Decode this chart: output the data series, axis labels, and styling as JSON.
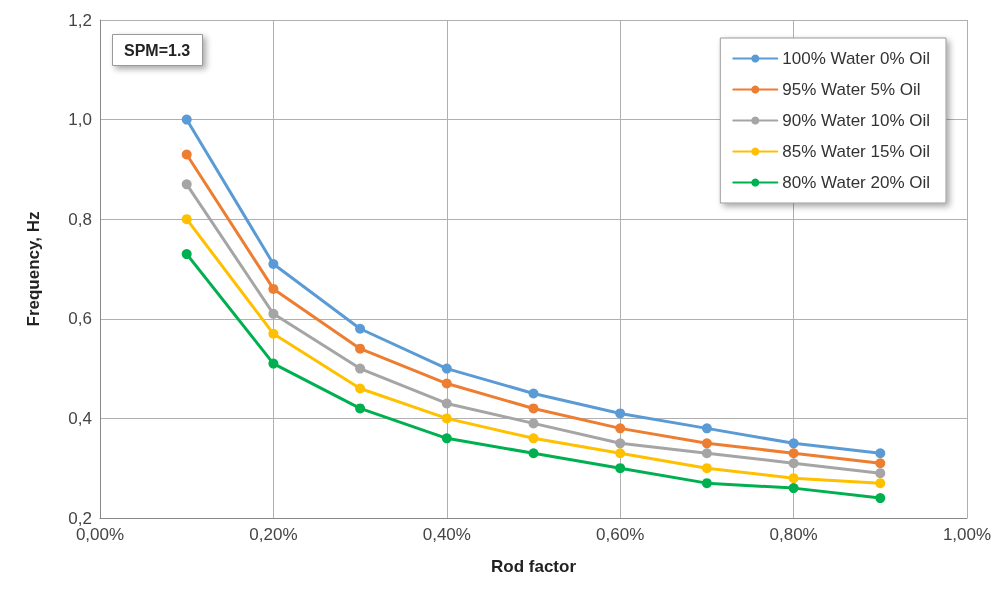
{
  "chart_data": {
    "type": "line",
    "xlabel": "Rod factor",
    "ylabel": "Frequency, Hz",
    "annotations": [
      "SPM=1.3"
    ],
    "x": [
      0.1,
      0.2,
      0.3,
      0.4,
      0.5,
      0.6,
      0.7,
      0.8,
      0.9
    ],
    "series": [
      {
        "name": "100% Water 0% Oil",
        "color": "#5b9bd5",
        "values": [
          1.0,
          0.71,
          0.58,
          0.5,
          0.45,
          0.41,
          0.38,
          0.35,
          0.33
        ]
      },
      {
        "name": "95% Water 5% Oil",
        "color": "#ed7d31",
        "values": [
          0.93,
          0.66,
          0.54,
          0.47,
          0.42,
          0.38,
          0.35,
          0.33,
          0.31
        ]
      },
      {
        "name": "90% Water 10% Oil",
        "color": "#a5a5a5",
        "values": [
          0.87,
          0.61,
          0.5,
          0.43,
          0.39,
          0.35,
          0.33,
          0.31,
          0.29
        ]
      },
      {
        "name": "85% Water 15% Oil",
        "color": "#ffc000",
        "values": [
          0.8,
          0.57,
          0.46,
          0.4,
          0.36,
          0.33,
          0.3,
          0.28,
          0.27
        ]
      },
      {
        "name": "80% Water 20% Oil",
        "color": "#00b050",
        "values": [
          0.73,
          0.51,
          0.42,
          0.36,
          0.33,
          0.3,
          0.27,
          0.26,
          0.24
        ]
      }
    ],
    "xlim": [
      0,
      1
    ],
    "xticks": [
      {
        "value": 0,
        "label": "0,00%"
      },
      {
        "value": 0.2,
        "label": "0,20%"
      },
      {
        "value": 0.4,
        "label": "0,40%"
      },
      {
        "value": 0.6,
        "label": "0,60%"
      },
      {
        "value": 0.8,
        "label": "0,80%"
      },
      {
        "value": 1,
        "label": "1,00%"
      }
    ],
    "ylim": [
      0.2,
      1.2
    ],
    "yticks": [
      {
        "value": 0.2,
        "label": "0,2"
      },
      {
        "value": 0.4,
        "label": "0,4"
      },
      {
        "value": 0.6,
        "label": "0,6"
      },
      {
        "value": 0.8,
        "label": "0,8"
      },
      {
        "value": 1.0,
        "label": "1,0"
      },
      {
        "value": 1.2,
        "label": "1,2"
      }
    ],
    "grid": true,
    "legend": "top right",
    "marker": "circle",
    "line_style": "solid"
  }
}
